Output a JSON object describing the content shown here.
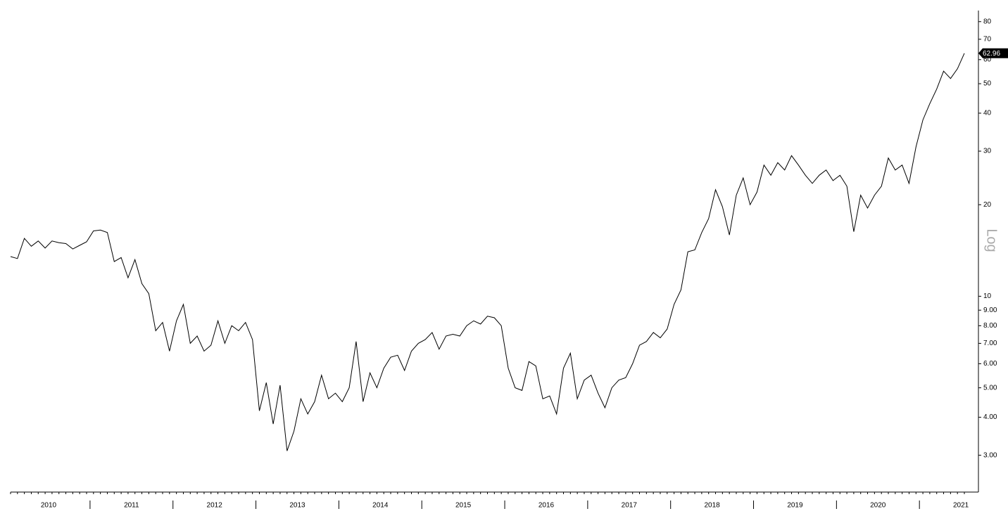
{
  "chart_data": {
    "type": "line",
    "scale_label": "Log",
    "log_scale": true,
    "categories": [
      "2010",
      null,
      null,
      null,
      null,
      null,
      null,
      null,
      null,
      null,
      null,
      null,
      "2011",
      null,
      null,
      null,
      null,
      null,
      null,
      null,
      null,
      null,
      null,
      null,
      "2012",
      null,
      null,
      null,
      null,
      null,
      null,
      null,
      null,
      null,
      null,
      null,
      "2013",
      null,
      null,
      null,
      null,
      null,
      null,
      null,
      null,
      null,
      null,
      null,
      "2014",
      null,
      null,
      null,
      null,
      null,
      null,
      null,
      null,
      null,
      null,
      null,
      "2015",
      null,
      null,
      null,
      null,
      null,
      null,
      null,
      null,
      null,
      null,
      null,
      "2016",
      null,
      null,
      null,
      null,
      null,
      null,
      null,
      null,
      null,
      null,
      null,
      "2017",
      null,
      null,
      null,
      null,
      null,
      null,
      null,
      null,
      null,
      null,
      null,
      "2018",
      null,
      null,
      null,
      null,
      null,
      null,
      null,
      null,
      null,
      null,
      null,
      "2019",
      null,
      null,
      null,
      null,
      null,
      null,
      null,
      null,
      null,
      null,
      null,
      "2020",
      null,
      null,
      null,
      null,
      null,
      null,
      null,
      null,
      null,
      null,
      null,
      "2021",
      null,
      null,
      null,
      null,
      null,
      null
    ],
    "series": [
      {
        "color": "#000000",
        "values": [
          13.5,
          13.3,
          15.5,
          14.6,
          15.2,
          14.4,
          15.2,
          15.0,
          14.9,
          14.3,
          14.7,
          15.1,
          16.4,
          16.5,
          16.2,
          13.0,
          13.4,
          11.5,
          13.2,
          11.0,
          10.2,
          7.7,
          8.2,
          6.6,
          8.3,
          9.4,
          7.0,
          7.4,
          6.6,
          6.9,
          8.3,
          7.0,
          8.0,
          7.7,
          8.2,
          7.2,
          4.2,
          5.2,
          3.8,
          5.1,
          3.1,
          3.6,
          4.6,
          4.1,
          4.5,
          5.5,
          4.6,
          4.8,
          4.5,
          5.0,
          7.1,
          4.5,
          5.6,
          5.0,
          5.8,
          6.3,
          6.4,
          5.7,
          6.6,
          7.0,
          7.2,
          7.6,
          6.7,
          7.4,
          7.5,
          7.4,
          8.0,
          8.3,
          8.1,
          8.6,
          8.5,
          8.0,
          5.8,
          5.0,
          4.9,
          6.1,
          5.9,
          4.6,
          4.7,
          4.1,
          5.8,
          6.5,
          4.6,
          5.3,
          5.5,
          4.8,
          4.3,
          5.0,
          5.3,
          5.4,
          6.0,
          6.9,
          7.1,
          7.6,
          7.3,
          7.8,
          9.4,
          10.5,
          14.0,
          14.2,
          16.2,
          18.0,
          22.4,
          19.7,
          15.9,
          21.5,
          24.5,
          20.0,
          22.0,
          27.0,
          25.0,
          27.5,
          26.0,
          29.0,
          27.0,
          25.0,
          23.5,
          25.0,
          26.0,
          24.0,
          25.0,
          23.0,
          16.3,
          21.5,
          19.5,
          21.5,
          23.0,
          28.5,
          26.0,
          27.0,
          23.5,
          31.0,
          38.0,
          43.0,
          48.0,
          55.0,
          52.0,
          56.0,
          62.96
        ]
      }
    ],
    "last_value": 62.96,
    "ylim": [
      2.27,
      87
    ],
    "yticks": [
      {
        "value": 3,
        "label": "3.00"
      },
      {
        "value": 4,
        "label": "4.00"
      },
      {
        "value": 5,
        "label": "5.00"
      },
      {
        "value": 6,
        "label": "6.00"
      },
      {
        "value": 7,
        "label": "7.00"
      },
      {
        "value": 8,
        "label": "8.00"
      },
      {
        "value": 9,
        "label": "9.00"
      },
      10,
      20,
      30,
      40,
      50,
      60,
      70,
      80
    ]
  }
}
